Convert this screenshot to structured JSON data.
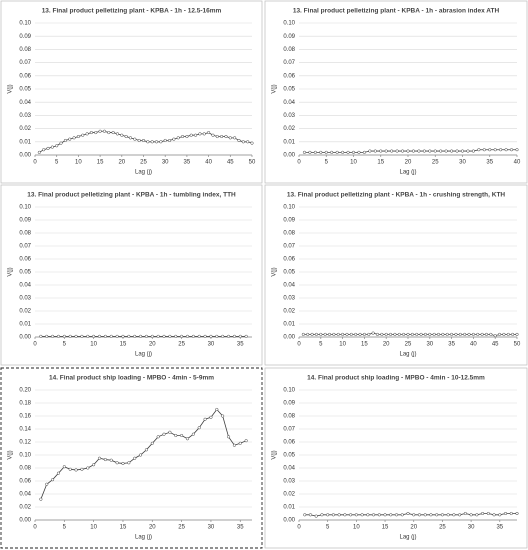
{
  "chart_data": [
    {
      "type": "line",
      "title": "13. Final product pelletizing plant - KPBA - 1h - 12.5-16mm",
      "x_label": "Lag (j)",
      "y_label": "V(j)",
      "color": "#404040",
      "grid": true,
      "x": [
        1,
        2,
        3,
        4,
        5,
        6,
        7,
        8,
        9,
        10,
        11,
        12,
        13,
        14,
        15,
        16,
        17,
        18,
        19,
        20,
        21,
        22,
        23,
        24,
        25,
        26,
        27,
        28,
        29,
        30,
        31,
        32,
        33,
        34,
        35,
        36,
        37,
        38,
        39,
        40,
        41,
        42,
        43,
        44,
        45,
        46,
        47,
        48,
        49,
        50
      ],
      "values": [
        0.002,
        0.004,
        0.005,
        0.006,
        0.007,
        0.009,
        0.011,
        0.012,
        0.013,
        0.014,
        0.015,
        0.016,
        0.017,
        0.017,
        0.018,
        0.018,
        0.017,
        0.017,
        0.016,
        0.015,
        0.014,
        0.013,
        0.012,
        0.011,
        0.011,
        0.01,
        0.01,
        0.01,
        0.01,
        0.011,
        0.011,
        0.012,
        0.013,
        0.014,
        0.014,
        0.015,
        0.015,
        0.016,
        0.016,
        0.017,
        0.015,
        0.014,
        0.014,
        0.014,
        0.013,
        0.013,
        0.011,
        0.01,
        0.01,
        0.009
      ],
      "xlim": [
        0,
        50
      ],
      "xticks": [
        0,
        5,
        10,
        15,
        20,
        25,
        30,
        35,
        40,
        45,
        50
      ],
      "ylim": [
        0,
        0.1
      ],
      "yticks": [
        {
          "value": 0,
          "label": "0.00"
        },
        {
          "value": 0.01,
          "label": "0.01"
        },
        {
          "value": 0.02,
          "label": "0.02"
        },
        {
          "value": 0.03,
          "label": "0.03"
        },
        {
          "value": 0.04,
          "label": "0.04"
        },
        {
          "value": 0.05,
          "label": "0.05"
        },
        {
          "value": 0.06,
          "label": "0.06"
        },
        {
          "value": 0.07,
          "label": "0.07"
        },
        {
          "value": 0.08,
          "label": "0.08"
        },
        {
          "value": 0.09,
          "label": "0.09"
        },
        {
          "value": 0.1,
          "label": "0.10"
        }
      ]
    },
    {
      "type": "line",
      "title": "13. Final product pelletizing plant - KPBA - 1h - abrasion index ATH",
      "x_label": "Lag (j)",
      "y_label": "V(j)",
      "color": "#404040",
      "grid": true,
      "x": [
        1,
        2,
        3,
        4,
        5,
        6,
        7,
        8,
        9,
        10,
        11,
        12,
        13,
        14,
        15,
        16,
        17,
        18,
        19,
        20,
        21,
        22,
        23,
        24,
        25,
        26,
        27,
        28,
        29,
        30,
        31,
        32,
        33,
        34,
        35,
        36,
        37,
        38,
        39,
        40
      ],
      "values": [
        0.002,
        0.002,
        0.002,
        0.002,
        0.002,
        0.002,
        0.002,
        0.002,
        0.002,
        0.002,
        0.002,
        0.002,
        0.003,
        0.003,
        0.003,
        0.003,
        0.003,
        0.003,
        0.003,
        0.003,
        0.003,
        0.003,
        0.003,
        0.003,
        0.003,
        0.003,
        0.003,
        0.003,
        0.003,
        0.003,
        0.003,
        0.003,
        0.004,
        0.004,
        0.004,
        0.004,
        0.004,
        0.004,
        0.004,
        0.004
      ],
      "xlim": [
        0,
        40
      ],
      "xticks": [
        0,
        5,
        10,
        15,
        20,
        25,
        30,
        35,
        40
      ],
      "ylim": [
        0,
        0.1
      ],
      "yticks": [
        {
          "value": 0,
          "label": "0.00"
        },
        {
          "value": 0.01,
          "label": "0.01"
        },
        {
          "value": 0.02,
          "label": "0.02"
        },
        {
          "value": 0.03,
          "label": "0.03"
        },
        {
          "value": 0.04,
          "label": "0.04"
        },
        {
          "value": 0.05,
          "label": "0.05"
        },
        {
          "value": 0.06,
          "label": "0.06"
        },
        {
          "value": 0.07,
          "label": "0.07"
        },
        {
          "value": 0.08,
          "label": "0.08"
        },
        {
          "value": 0.09,
          "label": "0.09"
        },
        {
          "value": 0.1,
          "label": "0.10"
        }
      ]
    },
    {
      "type": "line",
      "title": "13. Final product pelletizing plant - KPBA - 1h - tumbling index, TTH",
      "x_label": "Lag (j)",
      "y_label": "V(j)",
      "color": "#404040",
      "grid": true,
      "x": [
        1,
        2,
        3,
        4,
        5,
        6,
        7,
        8,
        9,
        10,
        11,
        12,
        13,
        14,
        15,
        16,
        17,
        18,
        19,
        20,
        21,
        22,
        23,
        24,
        25,
        26,
        27,
        28,
        29,
        30,
        31,
        32,
        33,
        34,
        35,
        36
      ],
      "values": [
        0.0005,
        0.0005,
        0.0005,
        0.0005,
        0.0005,
        0.0005,
        0.0005,
        0.0005,
        0.0005,
        0.0005,
        0.0005,
        0.0005,
        0.0005,
        0.0005,
        0.0005,
        0.0005,
        0.0005,
        0.0005,
        0.0005,
        0.0005,
        0.0005,
        0.0005,
        0.0005,
        0.0005,
        0.0005,
        0.0005,
        0.0005,
        0.0005,
        0.0005,
        0.0005,
        0.0005,
        0.0005,
        0.0005,
        0.0005,
        0.0005,
        0.0005
      ],
      "xlim": [
        0,
        37
      ],
      "xticks": [
        0,
        5,
        10,
        15,
        20,
        25,
        30,
        35
      ],
      "ylim": [
        0,
        0.1
      ],
      "yticks": [
        {
          "value": 0,
          "label": "0.00"
        },
        {
          "value": 0.01,
          "label": "0.01"
        },
        {
          "value": 0.02,
          "label": "0.02"
        },
        {
          "value": 0.03,
          "label": "0.03"
        },
        {
          "value": 0.04,
          "label": "0.04"
        },
        {
          "value": 0.05,
          "label": "0.05"
        },
        {
          "value": 0.06,
          "label": "0.06"
        },
        {
          "value": 0.07,
          "label": "0.07"
        },
        {
          "value": 0.08,
          "label": "0.08"
        },
        {
          "value": 0.09,
          "label": "0.09"
        },
        {
          "value": 0.1,
          "label": "0.10"
        }
      ]
    },
    {
      "type": "line",
      "title": "13. Final product pelletizing plant - KPBA - 1h - crushing strength, KTH",
      "x_label": "Lag (j)",
      "y_label": "V(j)",
      "color": "#404040",
      "grid": true,
      "x": [
        1,
        2,
        3,
        4,
        5,
        6,
        7,
        8,
        9,
        10,
        11,
        12,
        13,
        14,
        15,
        16,
        17,
        18,
        19,
        20,
        21,
        22,
        23,
        24,
        25,
        26,
        27,
        28,
        29,
        30,
        31,
        32,
        33,
        34,
        35,
        36,
        37,
        38,
        39,
        40,
        41,
        42,
        43,
        44,
        45,
        46,
        47,
        48,
        49,
        50
      ],
      "values": [
        0.002,
        0.002,
        0.002,
        0.002,
        0.002,
        0.002,
        0.002,
        0.002,
        0.002,
        0.002,
        0.002,
        0.002,
        0.002,
        0.002,
        0.002,
        0.002,
        0.003,
        0.002,
        0.002,
        0.002,
        0.002,
        0.002,
        0.002,
        0.002,
        0.002,
        0.002,
        0.002,
        0.002,
        0.002,
        0.002,
        0.002,
        0.002,
        0.002,
        0.002,
        0.002,
        0.002,
        0.002,
        0.002,
        0.002,
        0.002,
        0.002,
        0.002,
        0.002,
        0.002,
        0.001,
        0.002,
        0.002,
        0.002,
        0.002,
        0.002
      ],
      "xlim": [
        0,
        50
      ],
      "xticks": [
        0,
        5,
        10,
        15,
        20,
        25,
        30,
        35,
        40,
        45,
        50
      ],
      "ylim": [
        0,
        0.1
      ],
      "yticks": [
        {
          "value": 0,
          "label": "0.00"
        },
        {
          "value": 0.01,
          "label": "0.01"
        },
        {
          "value": 0.02,
          "label": "0.02"
        },
        {
          "value": 0.03,
          "label": "0.03"
        },
        {
          "value": 0.04,
          "label": "0.04"
        },
        {
          "value": 0.05,
          "label": "0.05"
        },
        {
          "value": 0.06,
          "label": "0.06"
        },
        {
          "value": 0.07,
          "label": "0.07"
        },
        {
          "value": 0.08,
          "label": "0.08"
        },
        {
          "value": 0.09,
          "label": "0.09"
        },
        {
          "value": 0.1,
          "label": "0.10"
        }
      ]
    },
    {
      "type": "line",
      "title": "14. Final product ship loading - MPBO - 4min - 5-9mm",
      "x_label": "Lag (j)",
      "y_label": "V(j)",
      "color": "#404040",
      "grid": true,
      "frame": "dashed",
      "x": [
        1,
        2,
        3,
        4,
        5,
        6,
        7,
        8,
        9,
        10,
        11,
        12,
        13,
        14,
        15,
        16,
        17,
        18,
        19,
        20,
        21,
        22,
        23,
        24,
        25,
        26,
        27,
        28,
        29,
        30,
        31,
        32,
        33,
        34,
        35,
        36
      ],
      "values": [
        0.032,
        0.055,
        0.062,
        0.072,
        0.082,
        0.078,
        0.077,
        0.078,
        0.08,
        0.085,
        0.095,
        0.093,
        0.092,
        0.088,
        0.087,
        0.088,
        0.095,
        0.1,
        0.108,
        0.118,
        0.128,
        0.132,
        0.135,
        0.13,
        0.13,
        0.125,
        0.132,
        0.142,
        0.155,
        0.158,
        0.17,
        0.16,
        0.128,
        0.115,
        0.118,
        0.122
      ],
      "xlim": [
        0,
        37
      ],
      "xticks": [
        0,
        5,
        10,
        15,
        20,
        25,
        30,
        35
      ],
      "ylim": [
        0,
        0.2
      ],
      "yticks": [
        {
          "value": 0,
          "label": "0.00"
        },
        {
          "value": 0.02,
          "label": "0.02"
        },
        {
          "value": 0.04,
          "label": "0.04"
        },
        {
          "value": 0.06,
          "label": "0.06"
        },
        {
          "value": 0.08,
          "label": "0.08"
        },
        {
          "value": 0.1,
          "label": "0.10"
        },
        {
          "value": 0.12,
          "label": "0.12"
        },
        {
          "value": 0.14,
          "label": "0.14"
        },
        {
          "value": 0.16,
          "label": "0.16"
        },
        {
          "value": 0.18,
          "label": "0.18"
        },
        {
          "value": 0.2,
          "label": "0.20"
        }
      ]
    },
    {
      "type": "line",
      "title": "14. Final product ship loading - MPBO - 4min - 10-12.5mm",
      "x_label": "Lag (j)",
      "y_label": "V(j)",
      "color": "#404040",
      "grid": true,
      "x": [
        1,
        2,
        3,
        4,
        5,
        6,
        7,
        8,
        9,
        10,
        11,
        12,
        13,
        14,
        15,
        16,
        17,
        18,
        19,
        20,
        21,
        22,
        23,
        24,
        25,
        26,
        27,
        28,
        29,
        30,
        31,
        32,
        33,
        34,
        35,
        36,
        37,
        38
      ],
      "values": [
        0.004,
        0.004,
        0.003,
        0.004,
        0.004,
        0.004,
        0.004,
        0.004,
        0.004,
        0.004,
        0.004,
        0.004,
        0.004,
        0.004,
        0.004,
        0.004,
        0.004,
        0.004,
        0.005,
        0.004,
        0.004,
        0.004,
        0.004,
        0.004,
        0.004,
        0.004,
        0.004,
        0.004,
        0.005,
        0.004,
        0.004,
        0.005,
        0.005,
        0.004,
        0.004,
        0.005,
        0.005,
        0.005
      ],
      "xlim": [
        0,
        38
      ],
      "xticks": [
        0,
        5,
        10,
        15,
        20,
        25,
        30,
        35
      ],
      "ylim": [
        0,
        0.1
      ],
      "yticks": [
        {
          "value": 0,
          "label": "0.00"
        },
        {
          "value": 0.01,
          "label": "0.01"
        },
        {
          "value": 0.02,
          "label": "0.02"
        },
        {
          "value": 0.03,
          "label": "0.03"
        },
        {
          "value": 0.04,
          "label": "0.04"
        },
        {
          "value": 0.05,
          "label": "0.05"
        },
        {
          "value": 0.06,
          "label": "0.06"
        },
        {
          "value": 0.07,
          "label": "0.07"
        },
        {
          "value": 0.08,
          "label": "0.08"
        },
        {
          "value": 0.09,
          "label": "0.09"
        },
        {
          "value": 0.1,
          "label": "0.10"
        }
      ]
    }
  ]
}
